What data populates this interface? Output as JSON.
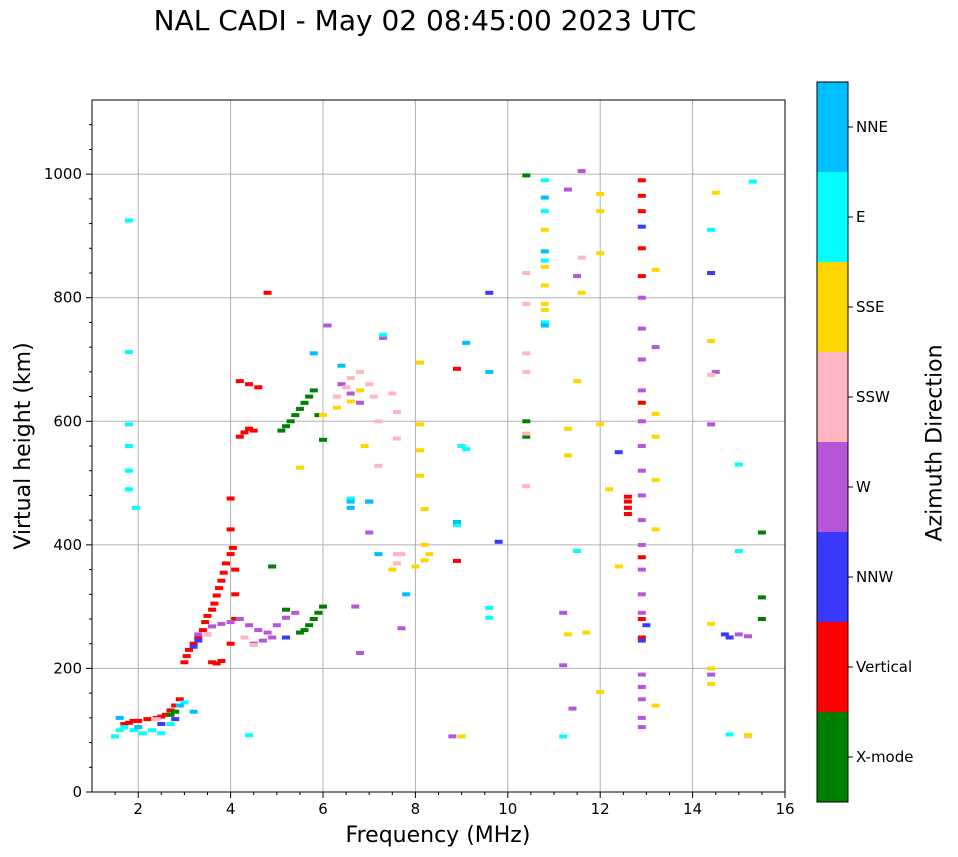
{
  "chart_data": {
    "type": "scatter",
    "title": "NAL CADI - May 02 08:45:00 2023 UTC",
    "xlabel": "Frequency (MHz)",
    "ylabel": "Virtual height (km)",
    "xlim": [
      1,
      16
    ],
    "ylim": [
      0,
      1120
    ],
    "xticks": [
      "2",
      "4",
      "6",
      "8",
      "10",
      "12",
      "14",
      "16"
    ],
    "yticks": [
      "0",
      "200",
      "400",
      "600",
      "800",
      "1000"
    ],
    "grid": true,
    "colorbar": {
      "label": "Azimuth Direction",
      "categories": [
        {
          "name": "X-mode",
          "color": "#008000"
        },
        {
          "name": "Vertical",
          "color": "#ff0000"
        },
        {
          "name": "NNW",
          "color": "#3a3aff"
        },
        {
          "name": "W",
          "color": "#b656d8"
        },
        {
          "name": "SSW",
          "color": "#ffb6c1"
        },
        {
          "name": "SSE",
          "color": "#ffd700"
        },
        {
          "name": "E",
          "color": "#00ffff"
        },
        {
          "name": "NNE",
          "color": "#00bfff"
        }
      ]
    },
    "series": [
      {
        "category": "Vertical",
        "points": [
          [
            1.7,
            110
          ],
          [
            1.8,
            112
          ],
          [
            1.9,
            115
          ],
          [
            2.0,
            115
          ],
          [
            2.2,
            118
          ],
          [
            2.4,
            120
          ],
          [
            2.5,
            122
          ],
          [
            2.6,
            125
          ],
          [
            2.7,
            132
          ],
          [
            2.8,
            140
          ],
          [
            2.9,
            150
          ],
          [
            3.0,
            210
          ],
          [
            3.05,
            220
          ],
          [
            3.1,
            230
          ],
          [
            3.2,
            240
          ],
          [
            3.3,
            250
          ],
          [
            3.4,
            262
          ],
          [
            3.45,
            275
          ],
          [
            3.5,
            285
          ],
          [
            3.6,
            295
          ],
          [
            3.65,
            305
          ],
          [
            3.7,
            318
          ],
          [
            3.75,
            330
          ],
          [
            3.8,
            342
          ],
          [
            3.85,
            355
          ],
          [
            3.9,
            370
          ],
          [
            4.0,
            385
          ],
          [
            4.05,
            395
          ],
          [
            3.6,
            210
          ],
          [
            3.7,
            208
          ],
          [
            3.8,
            212
          ],
          [
            4.0,
            475
          ],
          [
            4.0,
            425
          ],
          [
            4.2,
            575
          ],
          [
            4.3,
            582
          ],
          [
            4.4,
            588
          ],
          [
            4.5,
            585
          ],
          [
            4.2,
            665
          ],
          [
            4.4,
            660
          ],
          [
            4.6,
            655
          ],
          [
            4.8,
            808
          ],
          [
            4.0,
            240
          ],
          [
            4.1,
            280
          ],
          [
            4.1,
            320
          ],
          [
            4.1,
            360
          ],
          [
            8.9,
            374
          ],
          [
            8.9,
            685
          ],
          [
            12.6,
            450
          ],
          [
            12.6,
            460
          ],
          [
            12.6,
            470
          ],
          [
            12.6,
            478
          ],
          [
            12.9,
            990
          ],
          [
            12.9,
            965
          ],
          [
            12.9,
            940
          ],
          [
            12.9,
            880
          ],
          [
            12.9,
            835
          ],
          [
            12.9,
            630
          ],
          [
            12.9,
            250
          ],
          [
            12.9,
            280
          ],
          [
            12.9,
            380
          ]
        ]
      },
      {
        "category": "X-mode",
        "points": [
          [
            2.7,
            125
          ],
          [
            2.8,
            130
          ],
          [
            5.1,
            585
          ],
          [
            5.2,
            592
          ],
          [
            5.3,
            600
          ],
          [
            5.4,
            610
          ],
          [
            5.5,
            620
          ],
          [
            5.6,
            630
          ],
          [
            5.7,
            640
          ],
          [
            5.8,
            650
          ],
          [
            5.9,
            610
          ],
          [
            6.0,
            570
          ],
          [
            6.0,
            300
          ],
          [
            5.9,
            290
          ],
          [
            5.8,
            280
          ],
          [
            5.7,
            270
          ],
          [
            5.6,
            262
          ],
          [
            5.5,
            258
          ],
          [
            4.9,
            365
          ],
          [
            5.2,
            295
          ],
          [
            10.4,
            600
          ],
          [
            10.4,
            575
          ],
          [
            10.4,
            998
          ],
          [
            15.5,
            420
          ],
          [
            15.5,
            315
          ],
          [
            15.5,
            280
          ]
        ]
      },
      {
        "category": "NNW",
        "points": [
          [
            2.5,
            110
          ],
          [
            2.8,
            118
          ],
          [
            3.2,
            235
          ],
          [
            3.3,
            245
          ],
          [
            3.5,
            255
          ],
          [
            5.2,
            250
          ],
          [
            7.0,
            470
          ],
          [
            9.6,
            808
          ],
          [
            9.8,
            405
          ],
          [
            12.4,
            550
          ],
          [
            12.9,
            915
          ],
          [
            12.9,
            245
          ],
          [
            13.0,
            270
          ],
          [
            14.4,
            840
          ],
          [
            14.7,
            255
          ],
          [
            14.8,
            250
          ]
        ]
      },
      {
        "category": "W",
        "points": [
          [
            3.3,
            255
          ],
          [
            3.6,
            268
          ],
          [
            3.8,
            272
          ],
          [
            4.0,
            275
          ],
          [
            4.2,
            280
          ],
          [
            4.4,
            270
          ],
          [
            4.6,
            262
          ],
          [
            4.8,
            258
          ],
          [
            5.0,
            270
          ],
          [
            5.2,
            282
          ],
          [
            5.4,
            290
          ],
          [
            4.5,
            240
          ],
          [
            4.7,
            245
          ],
          [
            4.9,
            250
          ],
          [
            6.1,
            755
          ],
          [
            6.4,
            660
          ],
          [
            6.6,
            645
          ],
          [
            6.8,
            630
          ],
          [
            7.0,
            420
          ],
          [
            7.3,
            735
          ],
          [
            6.7,
            300
          ],
          [
            6.8,
            225
          ],
          [
            7.7,
            265
          ],
          [
            8.8,
            90
          ],
          [
            11.2,
            290
          ],
          [
            11.2,
            205
          ],
          [
            11.3,
            975
          ],
          [
            11.4,
            135
          ],
          [
            11.5,
            835
          ],
          [
            11.6,
            1005
          ],
          [
            12.9,
            750
          ],
          [
            12.9,
            700
          ],
          [
            12.9,
            650
          ],
          [
            12.9,
            600
          ],
          [
            12.9,
            560
          ],
          [
            12.9,
            520
          ],
          [
            12.9,
            480
          ],
          [
            12.9,
            440
          ],
          [
            12.9,
            400
          ],
          [
            12.9,
            360
          ],
          [
            12.9,
            320
          ],
          [
            12.9,
            290
          ],
          [
            12.9,
            190
          ],
          [
            12.9,
            170
          ],
          [
            12.9,
            150
          ],
          [
            12.9,
            120
          ],
          [
            12.9,
            105
          ],
          [
            12.9,
            800
          ],
          [
            13.2,
            720
          ],
          [
            14.4,
            595
          ],
          [
            14.4,
            190
          ],
          [
            14.5,
            680
          ],
          [
            15.0,
            255
          ],
          [
            15.2,
            252
          ]
        ]
      },
      {
        "category": "SSW",
        "points": [
          [
            2.4,
            118
          ],
          [
            3.5,
            255
          ],
          [
            4.3,
            250
          ],
          [
            4.5,
            238
          ],
          [
            6.3,
            640
          ],
          [
            6.5,
            655
          ],
          [
            6.6,
            670
          ],
          [
            6.8,
            680
          ],
          [
            7.0,
            660
          ],
          [
            7.1,
            640
          ],
          [
            7.2,
            600
          ],
          [
            7.5,
            645
          ],
          [
            7.6,
            615
          ],
          [
            7.6,
            572
          ],
          [
            7.2,
            528
          ],
          [
            7.6,
            385
          ],
          [
            7.6,
            370
          ],
          [
            7.7,
            385
          ],
          [
            10.4,
            840
          ],
          [
            10.4,
            790
          ],
          [
            10.4,
            710
          ],
          [
            10.4,
            680
          ],
          [
            10.4,
            580
          ],
          [
            10.4,
            495
          ],
          [
            11.6,
            865
          ],
          [
            14.4,
            675
          ],
          [
            15.2,
            90
          ]
        ]
      },
      {
        "category": "SSE",
        "points": [
          [
            5.5,
            525
          ],
          [
            6.0,
            610
          ],
          [
            6.3,
            622
          ],
          [
            6.6,
            632
          ],
          [
            6.8,
            650
          ],
          [
            6.9,
            560
          ],
          [
            7.5,
            360
          ],
          [
            8.0,
            365
          ],
          [
            8.2,
            375
          ],
          [
            8.3,
            385
          ],
          [
            8.1,
            695
          ],
          [
            8.1,
            595
          ],
          [
            8.1,
            553
          ],
          [
            8.1,
            512
          ],
          [
            8.2,
            458
          ],
          [
            8.2,
            400
          ],
          [
            9.0,
            90
          ],
          [
            10.8,
            910
          ],
          [
            10.8,
            850
          ],
          [
            10.8,
            820
          ],
          [
            10.8,
            790
          ],
          [
            10.8,
            780
          ],
          [
            11.3,
            588
          ],
          [
            11.3,
            545
          ],
          [
            11.3,
            255
          ],
          [
            11.5,
            665
          ],
          [
            11.6,
            808
          ],
          [
            11.7,
            258
          ],
          [
            12.0,
            968
          ],
          [
            12.0,
            940
          ],
          [
            12.0,
            872
          ],
          [
            12.0,
            595
          ],
          [
            12.2,
            490
          ],
          [
            12.4,
            365
          ],
          [
            12.0,
            162
          ],
          [
            13.2,
            845
          ],
          [
            13.2,
            612
          ],
          [
            13.2,
            575
          ],
          [
            13.2,
            505
          ],
          [
            13.2,
            425
          ],
          [
            13.2,
            140
          ],
          [
            14.5,
            970
          ],
          [
            14.4,
            730
          ],
          [
            14.4,
            272
          ],
          [
            14.4,
            200
          ],
          [
            14.4,
            175
          ],
          [
            15.2,
            92
          ]
        ]
      },
      {
        "category": "E",
        "points": [
          [
            1.5,
            90
          ],
          [
            1.6,
            100
          ],
          [
            1.7,
            105
          ],
          [
            1.9,
            100
          ],
          [
            2.1,
            95
          ],
          [
            2.3,
            100
          ],
          [
            2.5,
            95
          ],
          [
            2.7,
            110
          ],
          [
            3.0,
            145
          ],
          [
            1.8,
            925
          ],
          [
            1.8,
            712
          ],
          [
            1.8,
            595
          ],
          [
            1.8,
            560
          ],
          [
            1.8,
            520
          ],
          [
            1.8,
            490
          ],
          [
            1.95,
            460
          ],
          [
            4.4,
            92
          ],
          [
            6.6,
            475
          ],
          [
            7.3,
            740
          ],
          [
            8.9,
            432
          ],
          [
            9.0,
            560
          ],
          [
            9.1,
            555
          ],
          [
            9.6,
            298
          ],
          [
            9.6,
            282
          ],
          [
            10.8,
            990
          ],
          [
            10.8,
            940
          ],
          [
            10.8,
            860
          ],
          [
            10.8,
            760
          ],
          [
            11.5,
            390
          ],
          [
            11.2,
            90
          ],
          [
            14.4,
            910
          ],
          [
            14.8,
            93
          ],
          [
            15.0,
            390
          ],
          [
            15.0,
            530
          ],
          [
            15.3,
            988
          ]
        ]
      },
      {
        "category": "NNE",
        "points": [
          [
            1.6,
            120
          ],
          [
            2.0,
            105
          ],
          [
            2.9,
            140
          ],
          [
            3.2,
            130
          ],
          [
            5.8,
            710
          ],
          [
            6.4,
            690
          ],
          [
            6.6,
            460
          ],
          [
            6.6,
            470
          ],
          [
            7.0,
            470
          ],
          [
            7.2,
            385
          ],
          [
            7.8,
            320
          ],
          [
            8.9,
            437
          ],
          [
            9.1,
            727
          ],
          [
            9.6,
            680
          ],
          [
            10.8,
            962
          ],
          [
            10.8,
            875
          ],
          [
            10.8,
            755
          ]
        ]
      }
    ]
  }
}
